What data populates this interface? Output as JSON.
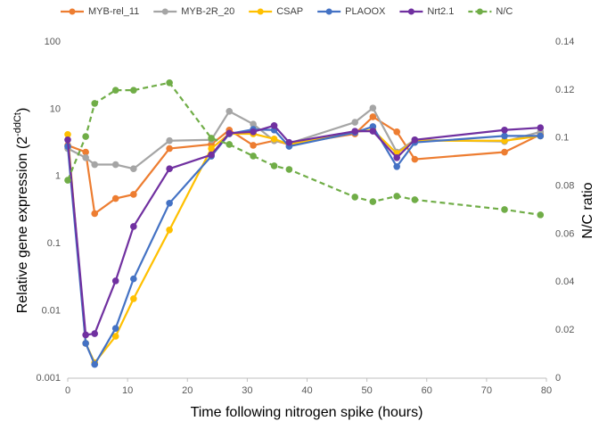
{
  "chart_data": {
    "type": "line",
    "x_label": "Time following nitrogen spike (hours)",
    "y_label": "Relative gene expression (2",
    "y_label_sup": "-ddCt",
    "y_label_end": ")",
    "y2_label": "N/C ratio",
    "x": [
      0,
      3,
      4.5,
      8,
      11,
      17,
      24,
      27,
      31,
      34.5,
      37,
      48,
      51,
      55,
      58,
      73,
      79
    ],
    "xlim": [
      0,
      80
    ],
    "xticks": [
      0,
      10,
      20,
      30,
      40,
      50,
      60,
      70,
      80
    ],
    "ylim": [
      0.001,
      100
    ],
    "yticks": [
      0.001,
      0.01,
      0.1,
      1,
      10,
      100
    ],
    "ylog": true,
    "y2lim": [
      0,
      0.14
    ],
    "y2ticks": [
      0,
      0.02,
      0.04,
      0.06,
      0.08,
      0.1,
      0.12,
      0.14
    ],
    "grid": false,
    "legend": "top",
    "series": [
      {
        "name": "MYB-rel_11",
        "color": "#ed7d31",
        "values": [
          2.9,
          2.3,
          0.28,
          0.47,
          0.54,
          2.6,
          3.0,
          4.9,
          2.9,
          3.4,
          3.0,
          4.3,
          7.7,
          4.6,
          1.8,
          2.3,
          4.2
        ]
      },
      {
        "name": "MYB-2R_20",
        "color": "#a5a5a5",
        "values": [
          2.6,
          1.9,
          1.5,
          1.5,
          1.3,
          3.4,
          3.5,
          9.3,
          6.0,
          3.4,
          3.1,
          6.4,
          10.4,
          2.3,
          3.5,
          3.3,
          4.6
        ]
      },
      {
        "name": "CSAP",
        "color": "#ffc000",
        "values": [
          4.2,
          0.0033,
          0.0017,
          0.0042,
          0.0152,
          0.16,
          2.6,
          4.3,
          4.3,
          3.6,
          3.0,
          4.6,
          4.9,
          2.2,
          3.4,
          3.4,
          4.0
        ]
      },
      {
        "name": "PLAOOX",
        "color": "#4472c4",
        "values": [
          2.8,
          0.0033,
          0.0016,
          0.0055,
          0.03,
          0.4,
          2.0,
          4.3,
          5.0,
          4.9,
          2.8,
          4.5,
          5.5,
          1.4,
          3.2,
          4.0,
          4.0
        ]
      },
      {
        "name": "Nrt2.1",
        "color": "#7030a0",
        "values": [
          3.5,
          0.0044,
          0.0046,
          0.028,
          0.18,
          1.3,
          2.1,
          4.4,
          4.6,
          5.7,
          3.2,
          4.7,
          4.7,
          1.9,
          3.5,
          4.9,
          5.3
        ]
      },
      {
        "name": "N/C",
        "color": "#70ad47",
        "axis": "y2",
        "dashed": true,
        "values": [
          0.0824,
          0.1006,
          0.1144,
          0.1199,
          0.1199,
          0.123,
          0.0999,
          0.0973,
          0.0925,
          0.0884,
          0.0869,
          0.0754,
          0.0735,
          0.0758,
          0.0743,
          0.0702,
          0.068
        ]
      }
    ]
  }
}
